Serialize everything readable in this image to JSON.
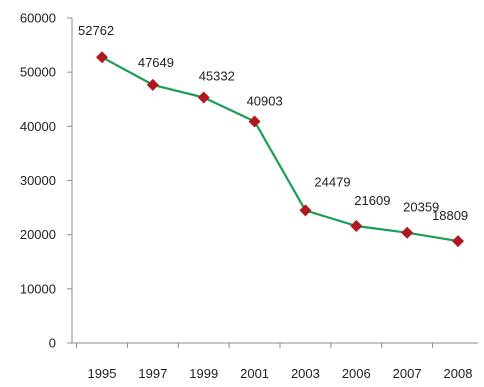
{
  "chart_data": {
    "type": "line",
    "title": "",
    "xlabel": "",
    "ylabel": "",
    "categories": [
      "1995",
      "1997",
      "1999",
      "2001",
      "2003",
      "2006",
      "2007",
      "2008"
    ],
    "series": [
      {
        "values": [
          52762,
          47649,
          45332,
          40903,
          24479,
          21609,
          20359,
          18809
        ],
        "line_color": "#1a9e55",
        "marker_color": "#b0171f",
        "marker": "diamond"
      }
    ],
    "data_labels": [
      "52762",
      "47649",
      "45332",
      "40903",
      "24479",
      "21609",
      "20359",
      "18809"
    ],
    "ylim": [
      0,
      60000
    ],
    "yticks": [
      0,
      10000,
      20000,
      30000,
      40000,
      50000,
      60000
    ],
    "ytick_labels": [
      "0",
      "10000",
      "20000",
      "30000",
      "40000",
      "50000",
      "60000"
    ],
    "grid": false,
    "legend": "none",
    "axis_color": "#8c8c8c"
  }
}
